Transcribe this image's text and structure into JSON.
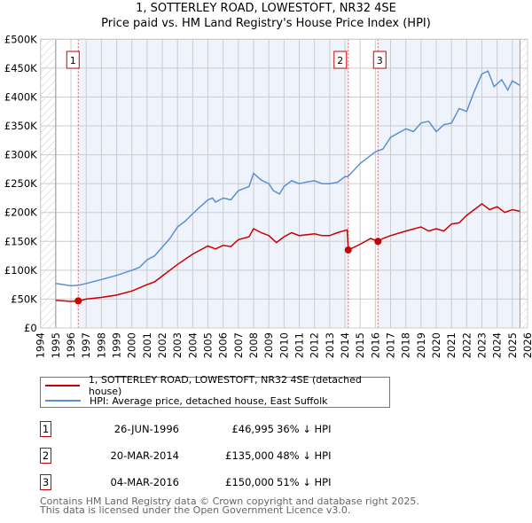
{
  "chart_data": {
    "type": "line",
    "title": "1, SOTTERLEY ROAD, LOWESTOFT, NR32 4SE",
    "subtitle": "Price paid vs. HM Land Registry's House Price Index (HPI)",
    "xlim": [
      1994,
      2026
    ],
    "ylim": [
      0,
      500000
    ],
    "x_ticks": [
      "1994",
      "1995",
      "1996",
      "1997",
      "1998",
      "1999",
      "2000",
      "2001",
      "2002",
      "2003",
      "2004",
      "2005",
      "2006",
      "2007",
      "2008",
      "2009",
      "2010",
      "2011",
      "2012",
      "2013",
      "2014",
      "2015",
      "2016",
      "2017",
      "2018",
      "2019",
      "2020",
      "2021",
      "2022",
      "2023",
      "2024",
      "2025",
      "2026"
    ],
    "y_ticks": [
      {
        "v": 0,
        "label": "£0"
      },
      {
        "v": 50000,
        "label": "£50K"
      },
      {
        "v": 100000,
        "label": "£100K"
      },
      {
        "v": 150000,
        "label": "£150K"
      },
      {
        "v": 200000,
        "label": "£200K"
      },
      {
        "v": 250000,
        "label": "£250K"
      },
      {
        "v": 300000,
        "label": "£300K"
      },
      {
        "v": 350000,
        "label": "£350K"
      },
      {
        "v": 400000,
        "label": "£400K"
      },
      {
        "v": 450000,
        "label": "£450K"
      },
      {
        "v": 500000,
        "label": "£500K"
      }
    ],
    "grid": true,
    "data_range": [
      1995,
      2025.5
    ],
    "colors": {
      "property": "#cc0000",
      "hpi": "#5b8fd4",
      "shade": "#eef3fc",
      "grid": "#cccccc"
    },
    "series": [
      {
        "name": "1, SOTTERLEY ROAD, LOWESTOFT, NR32 4SE (detached house)",
        "color": "#cc0000",
        "x": [
          1995,
          1996,
          1996.5,
          1997,
          1998,
          1999,
          2000,
          2001,
          2001.5,
          2002,
          2003,
          2004,
          2005,
          2005.5,
          2006,
          2006.5,
          2007,
          2007.7,
          2008,
          2008.5,
          2009,
          2009.5,
          2010,
          2010.5,
          2011,
          2012,
          2012.5,
          2013,
          2013.5,
          2014.15,
          2014.22,
          2015,
          2015.7,
          2016.17,
          2016.5,
          2017,
          2018,
          2019,
          2019.5,
          2020,
          2020.5,
          2021,
          2021.5,
          2022,
          2022.5,
          2023,
          2023.5,
          2024,
          2024.5,
          2025,
          2025.5
        ],
        "y": [
          48000,
          46000,
          47000,
          50000,
          53000,
          57000,
          64000,
          75000,
          80000,
          90000,
          110000,
          128000,
          142000,
          137000,
          143000,
          141000,
          153000,
          158000,
          172000,
          165000,
          160000,
          148000,
          158000,
          165000,
          160000,
          163000,
          160000,
          160000,
          165000,
          170000,
          135000,
          145000,
          155000,
          150000,
          155000,
          160000,
          168000,
          175000,
          168000,
          172000,
          168000,
          180000,
          182000,
          195000,
          205000,
          215000,
          205000,
          210000,
          200000,
          205000,
          202000
        ]
      },
      {
        "name": "HPI: Average price, detached house, East Suffolk",
        "color": "#5b8fd4",
        "x": [
          1995,
          1996,
          1996.5,
          1997,
          1998,
          1999,
          2000,
          2000.5,
          2001,
          2001.5,
          2002,
          2002.5,
          2003,
          2003.5,
          2004,
          2004.5,
          2005,
          2005.3,
          2005.5,
          2006,
          2006.5,
          2007,
          2007.7,
          2008,
          2008.5,
          2009,
          2009.3,
          2009.7,
          2010,
          2010.5,
          2011,
          2011.5,
          2012,
          2012.5,
          2013,
          2013.5,
          2014,
          2014.2,
          2015,
          2015.5,
          2016,
          2016.5,
          2017,
          2018,
          2018.5,
          2019,
          2019.5,
          2020,
          2020.5,
          2021,
          2021.5,
          2022,
          2022.5,
          2023,
          2023.4,
          2023.8,
          2024.3,
          2024.7,
          2025,
          2025.5
        ],
        "y": [
          77000,
          73000,
          74000,
          77000,
          84000,
          91000,
          100000,
          105000,
          118000,
          125000,
          140000,
          155000,
          175000,
          185000,
          198000,
          210000,
          222000,
          225000,
          218000,
          225000,
          222000,
          238000,
          245000,
          268000,
          256000,
          250000,
          238000,
          232000,
          245000,
          255000,
          250000,
          253000,
          255000,
          250000,
          250000,
          252000,
          262000,
          262000,
          285000,
          295000,
          305000,
          310000,
          330000,
          345000,
          340000,
          355000,
          358000,
          340000,
          352000,
          355000,
          380000,
          375000,
          410000,
          440000,
          445000,
          418000,
          430000,
          412000,
          428000,
          420000
        ]
      }
    ],
    "sales": [
      {
        "n": "1",
        "x": 1996.48,
        "y": 46995,
        "date": "26-JUN-1996",
        "price": "£46,995",
        "hpi": "36% ↓ HPI"
      },
      {
        "n": "2",
        "x": 2014.22,
        "y": 135000,
        "date": "20-MAR-2014",
        "price": "£135,000",
        "hpi": "48% ↓ HPI"
      },
      {
        "n": "3",
        "x": 2016.17,
        "y": 150000,
        "date": "04-MAR-2016",
        "price": "£150,000",
        "hpi": "51% ↓ HPI"
      }
    ]
  },
  "footer": {
    "line1": "Contains HM Land Registry data © Crown copyright and database right 2025.",
    "line2": "This data is licensed under the Open Government Licence v3.0."
  }
}
